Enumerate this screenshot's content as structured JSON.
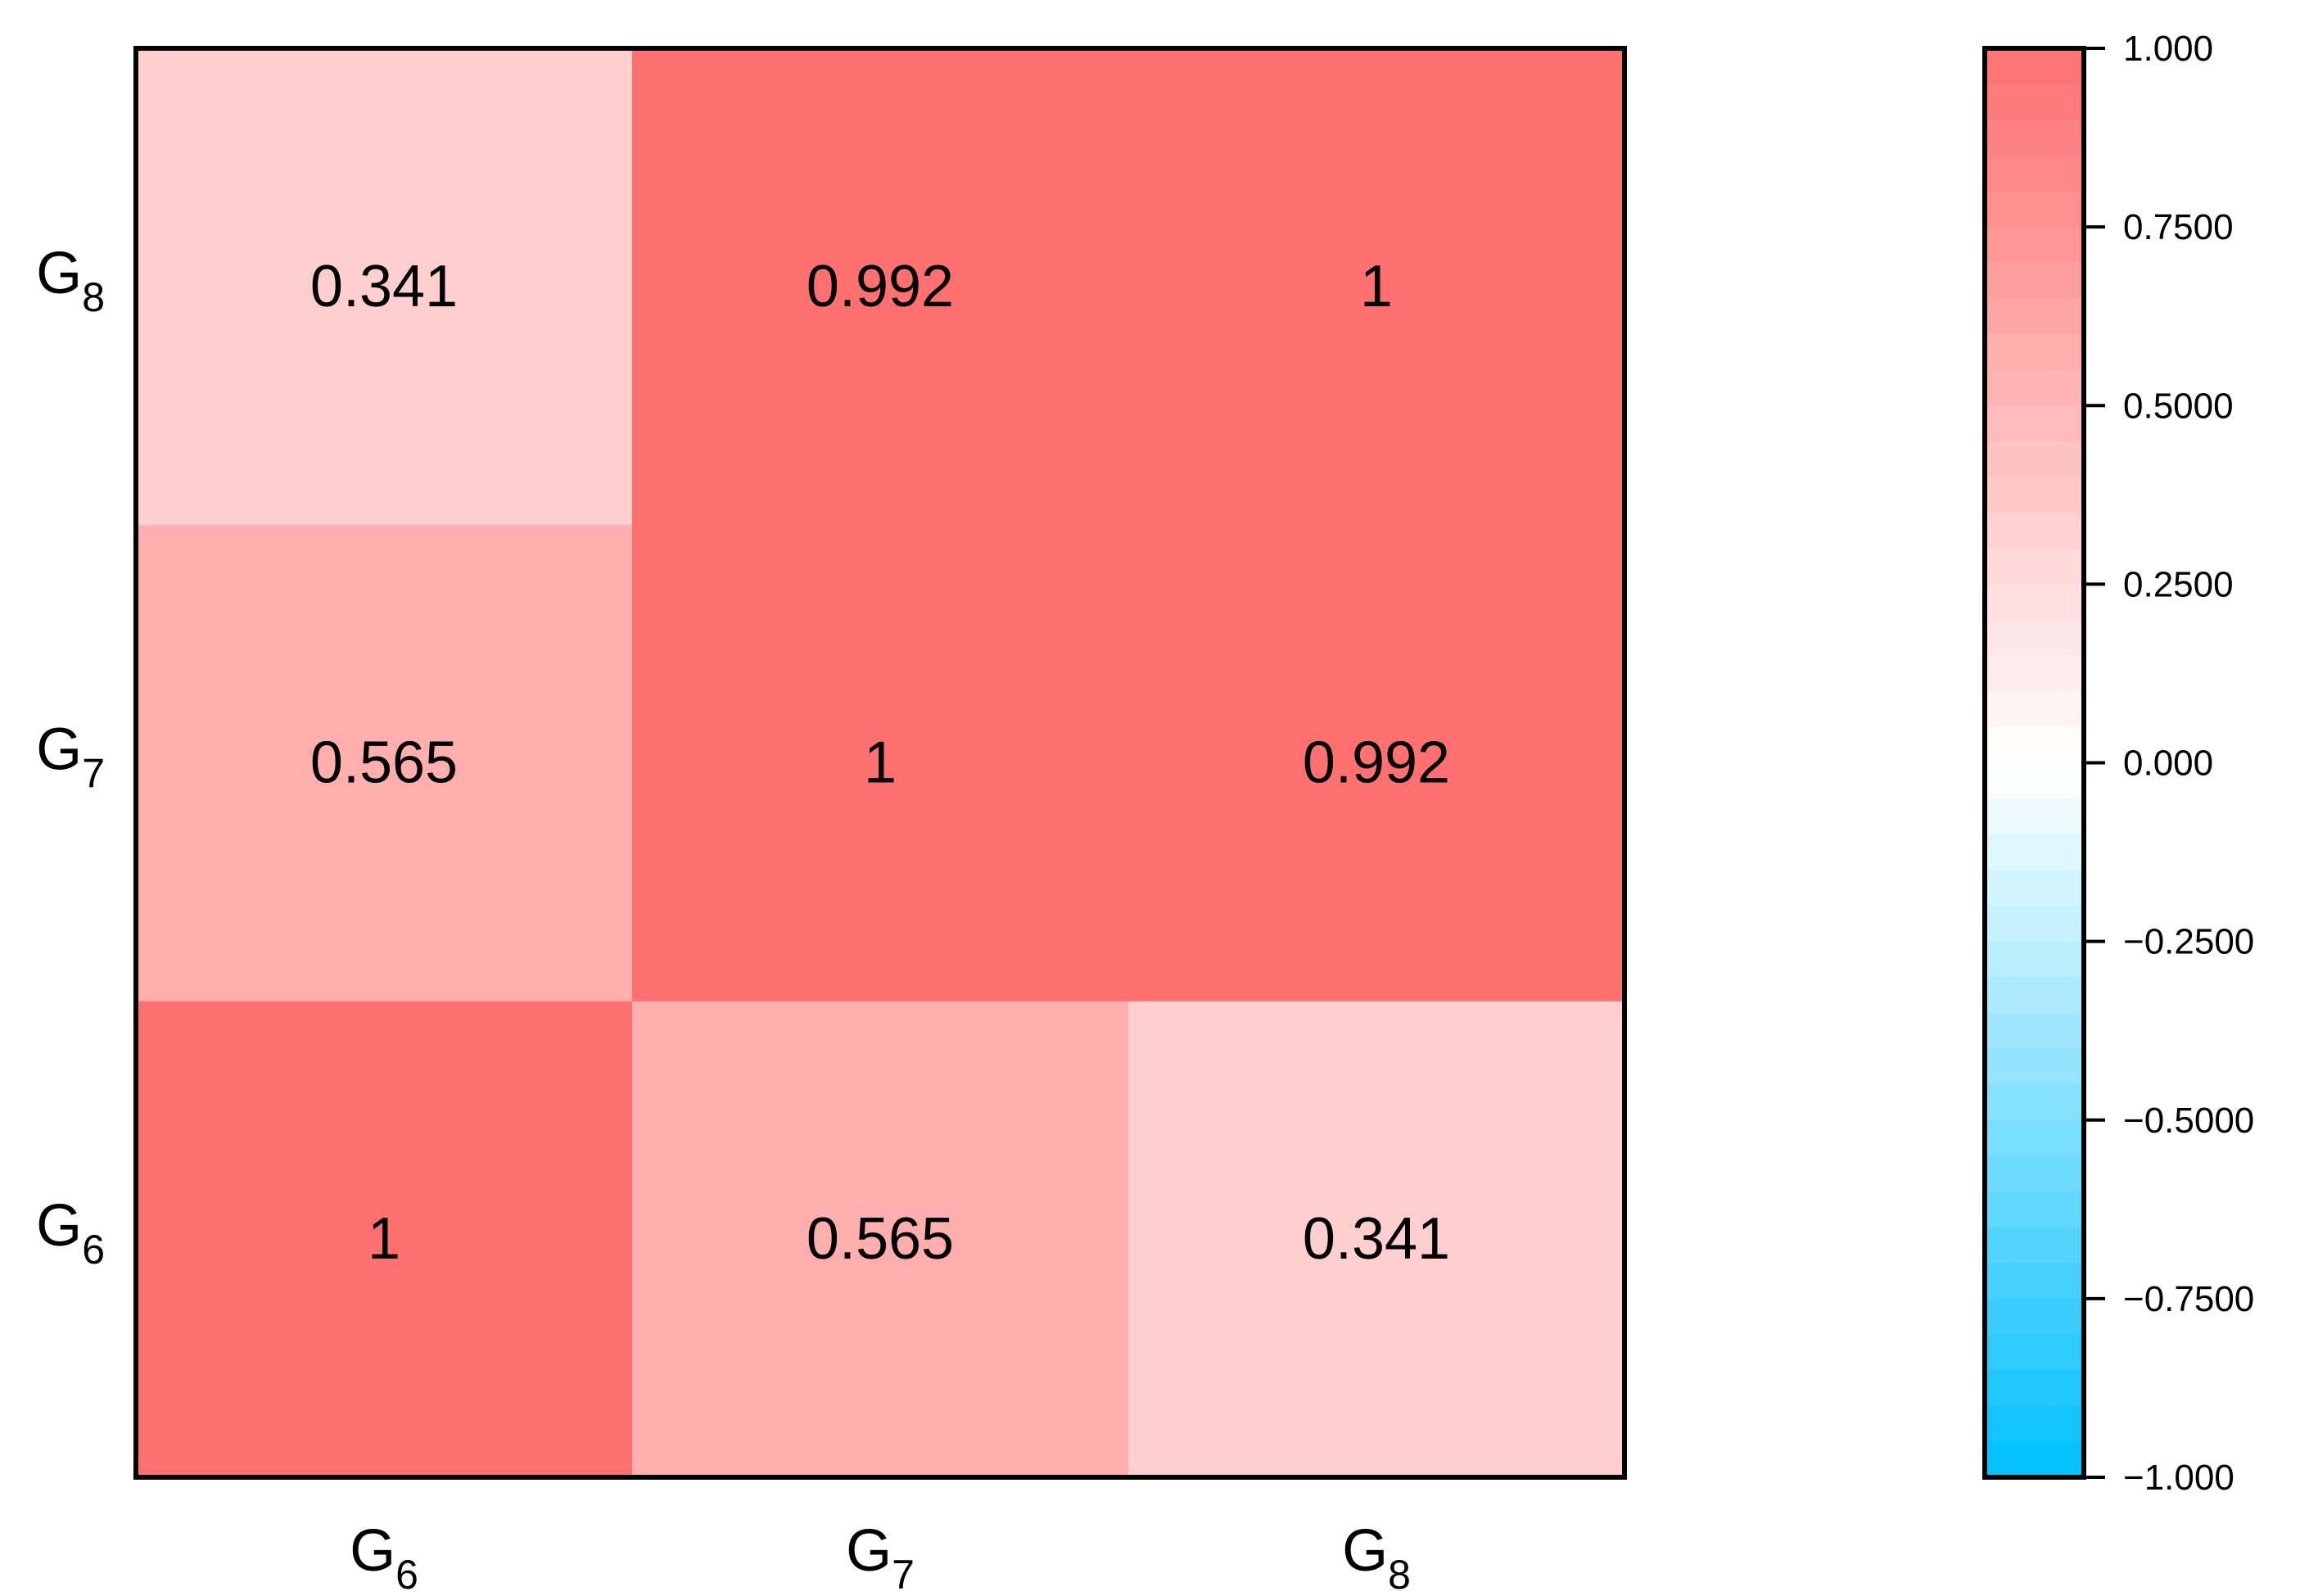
{
  "chart_data": {
    "type": "heatmap",
    "title": "",
    "xlabel": "",
    "ylabel": "",
    "x_categories": [
      {
        "base": "G",
        "sub": "6"
      },
      {
        "base": "G",
        "sub": "7"
      },
      {
        "base": "G",
        "sub": "8"
      }
    ],
    "y_categories": [
      {
        "base": "G",
        "sub": "6"
      },
      {
        "base": "G",
        "sub": "7"
      },
      {
        "base": "G",
        "sub": "8"
      }
    ],
    "values": [
      [
        1,
        0.565,
        0.341
      ],
      [
        0.565,
        1,
        0.992
      ],
      [
        0.341,
        0.992,
        1
      ]
    ],
    "cell_labels": [
      [
        "1",
        "0.565",
        "0.341"
      ],
      [
        "0.565",
        "1",
        "0.992"
      ],
      [
        "0.341",
        "0.992",
        "1"
      ]
    ],
    "colorbar": {
      "range": [
        -1,
        1
      ],
      "low_color": "#00c0ff",
      "mid_color": "#ffffff",
      "high_color": "#ff7070",
      "ticks": [
        1,
        0.75,
        0.5,
        0.25,
        0,
        -0.25,
        -0.5,
        -0.75,
        -1
      ],
      "tick_labels": [
        "1.000",
        "0.7500",
        "0.5000",
        "0.2500",
        "0.000",
        "−0.2500",
        "−0.5000",
        "−0.7500",
        "−1.000"
      ]
    },
    "grid": false,
    "legend": "colorbar-right"
  }
}
